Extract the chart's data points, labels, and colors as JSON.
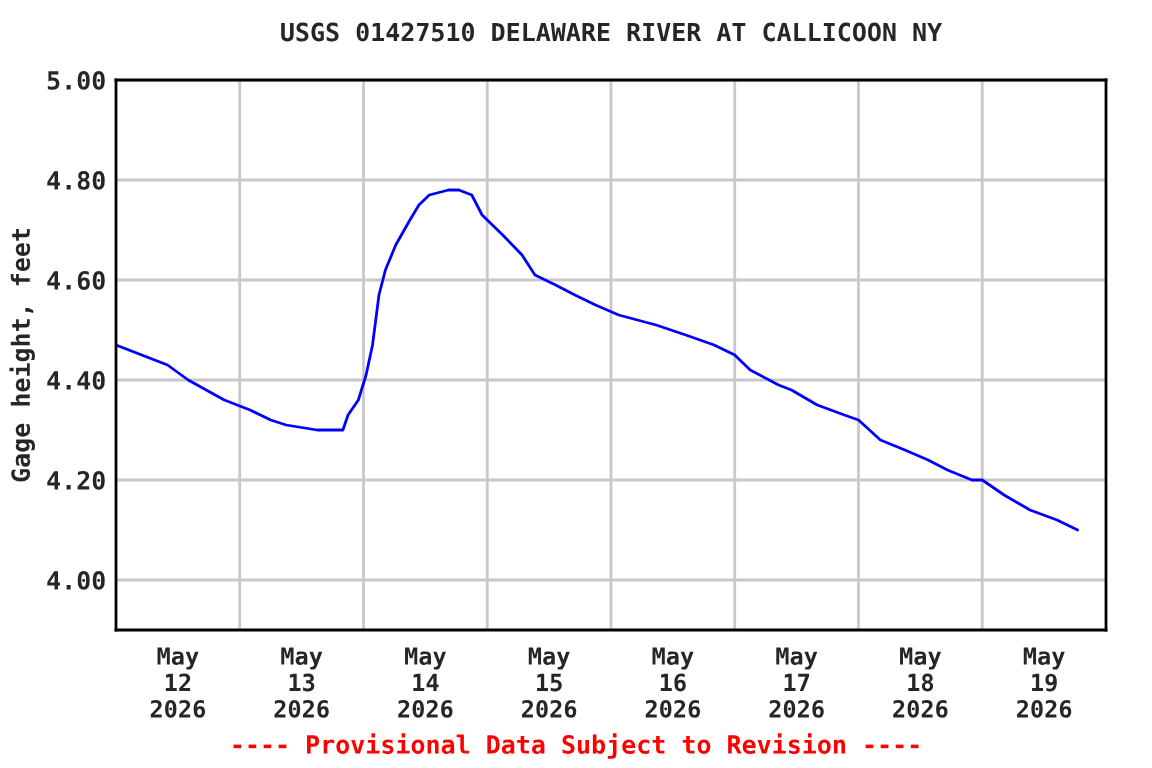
{
  "chart_data": {
    "type": "line",
    "title": "USGS 01427510 DELAWARE RIVER AT CALLICOON NY",
    "ylabel": "Gage height, feet",
    "annotations": [
      "---- Provisional Data Subject to Revision ----"
    ],
    "x": [
      "2026-05-12T00:00",
      "2026-05-12T10:00",
      "2026-05-12T14:00",
      "2026-05-12T21:00",
      "2026-05-13T02:00",
      "2026-05-13T06:00",
      "2026-05-13T09:00",
      "2026-05-13T15:00",
      "2026-05-13T20:00",
      "2026-05-13T21:00",
      "2026-05-13T23:00",
      "2026-05-14T00:30",
      "2026-05-14T01:45",
      "2026-05-14T03:00",
      "2026-05-14T04:15",
      "2026-05-14T06:15",
      "2026-05-14T09:00",
      "2026-05-14T10:45",
      "2026-05-14T12:45",
      "2026-05-14T16:30",
      "2026-05-14T18:30",
      "2026-05-14T21:00",
      "2026-05-14T23:00",
      "2026-05-15T03:00",
      "2026-05-15T06:45",
      "2026-05-15T09:15",
      "2026-05-15T13:15",
      "2026-05-15T17:00",
      "2026-05-15T21:00",
      "2026-05-16T01:30",
      "2026-05-16T08:45",
      "2026-05-16T14:30",
      "2026-05-16T20:00",
      "2026-05-17T00:00",
      "2026-05-17T03:00",
      "2026-05-17T08:30",
      "2026-05-17T11:00",
      "2026-05-17T16:00",
      "2026-05-17T21:15",
      "2026-05-18T00:00",
      "2026-05-18T04:15",
      "2026-05-18T09:00",
      "2026-05-18T13:30",
      "2026-05-18T17:15",
      "2026-05-18T22:00",
      "2026-05-19T00:00",
      "2026-05-19T04:15",
      "2026-05-19T09:15",
      "2026-05-19T14:30",
      "2026-05-19T18:30"
    ],
    "series": [
      {
        "color": "#0000ff",
        "values": [
          4.47,
          4.43,
          4.4,
          4.36,
          4.34,
          4.32,
          4.31,
          4.3,
          4.3,
          4.33,
          4.36,
          4.41,
          4.47,
          4.57,
          4.62,
          4.67,
          4.72,
          4.75,
          4.77,
          4.78,
          4.78,
          4.77,
          4.73,
          4.69,
          4.65,
          4.61,
          4.59,
          4.57,
          4.55,
          4.53,
          4.51,
          4.49,
          4.47,
          4.45,
          4.42,
          4.39,
          4.38,
          4.35,
          4.33,
          4.32,
          4.28,
          4.26,
          4.24,
          4.22,
          4.2,
          4.2,
          4.17,
          4.14,
          4.12,
          4.1
        ]
      }
    ],
    "xlim": [
      "2026-05-12T00:00",
      "2026-05-20T00:00"
    ],
    "xticks": [
      {
        "value": "2026-05-12T12:00",
        "label": "May\n12\n2026"
      },
      {
        "value": "2026-05-13T00:00",
        "label": null
      },
      {
        "value": "2026-05-13T12:00",
        "label": "May\n13\n2026"
      },
      {
        "value": "2026-05-14T00:00",
        "label": null
      },
      {
        "value": "2026-05-14T12:00",
        "label": "May\n14\n2026"
      },
      {
        "value": "2026-05-15T00:00",
        "label": null
      },
      {
        "value": "2026-05-15T12:00",
        "label": "May\n15\n2026"
      },
      {
        "value": "2026-05-16T00:00",
        "label": null
      },
      {
        "value": "2026-05-16T12:00",
        "label": "May\n16\n2026"
      },
      {
        "value": "2026-05-17T00:00",
        "label": null
      },
      {
        "value": "2026-05-17T12:00",
        "label": "May\n17\n2026"
      },
      {
        "value": "2026-05-18T00:00",
        "label": null
      },
      {
        "value": "2026-05-18T12:00",
        "label": "May\n18\n2026"
      },
      {
        "value": "2026-05-19T00:00",
        "label": null
      },
      {
        "value": "2026-05-19T12:00",
        "label": "May\n19\n2026"
      }
    ],
    "ylim": [
      3.9,
      5.0
    ],
    "yticks": [
      {
        "value": 4.0,
        "label": "4.00"
      },
      {
        "value": 4.2,
        "label": "4.20"
      },
      {
        "value": 4.4,
        "label": "4.40"
      },
      {
        "value": 4.6,
        "label": "4.60"
      },
      {
        "value": 4.8,
        "label": "4.80"
      },
      {
        "value": 5.0,
        "label": "5.00"
      }
    ],
    "grid": true,
    "legend": false
  }
}
